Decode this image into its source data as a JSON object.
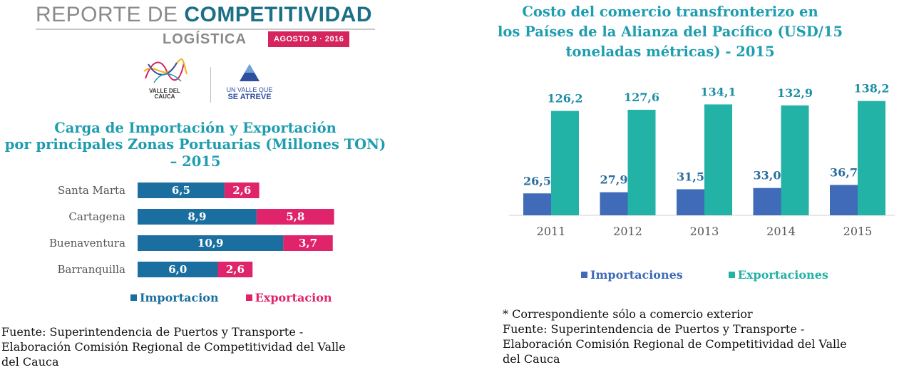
{
  "header": {
    "title_plain": "REPORTE DE ",
    "title_bold": "COMPETITIVIDAD",
    "subtitle": "LOGÍSTICA",
    "date_badge": "AGOSTO 9 · 2016",
    "logo_left_line1": "VALLE DEL",
    "logo_left_line2": "CAUCA",
    "logo_right_line1": "UN VALLE QUE",
    "logo_right_line2": "SE ATREVE"
  },
  "colors": {
    "importacion": "#1a6fa0",
    "exportacion": "#e0246c",
    "importaciones": "#3f6bb8",
    "exportaciones": "#22b2a6",
    "title": "#1e9db0"
  },
  "left": {
    "title_line1": "Carga de Importación y Exportación",
    "title_line2": "por principales Zonas Portuarias (Millones TON)",
    "title_line3": "– 2015",
    "source_line1": "Fuente: Superintendencia de Puertos y Transporte -",
    "source_line2": "Elaboración Comisión Regional de Competitividad del Valle",
    "source_line3": "del Cauca"
  },
  "right": {
    "title_line1": "Costo del comercio transfronterizo en",
    "title_line2": "los Países de la Alianza del Pacífico (USD/15",
    "title_line3": "toneladas métricas) - 2015",
    "note": "* Correspondiente sólo a comercio exterior",
    "source_line1": "Fuente: Superintendencia de Puertos y Transporte -",
    "source_line2": "Elaboración Comisión Regional de Competitividad del Valle",
    "source_line3": "del Cauca"
  },
  "chart_data": [
    {
      "type": "bar",
      "orientation": "horizontal",
      "stacked": true,
      "title": "Carga de Importación y Exportación por principales Zonas Portuarias (Millones TON) – 2015",
      "categories": [
        "Santa Marta",
        "Cartagena",
        "Buenaventura",
        "Barranquilla"
      ],
      "series": [
        {
          "name": "Importacion",
          "values": [
            6.5,
            8.9,
            10.9,
            6.0
          ],
          "labels": [
            "6,5",
            "8,9",
            "10,9",
            "6,0"
          ]
        },
        {
          "name": "Exportacion",
          "values": [
            2.6,
            5.8,
            3.7,
            2.6
          ],
          "labels": [
            "2,6",
            "5,8",
            "3,7",
            "2,6"
          ]
        }
      ],
      "legend": "bottom"
    },
    {
      "type": "bar",
      "orientation": "vertical",
      "title": "Costo del comercio transfronterizo en los Países de la Alianza del Pacífico (USD/15 toneladas métricas) - 2015",
      "categories": [
        "2011",
        "2012",
        "2013",
        "2014",
        "2015"
      ],
      "series": [
        {
          "name": "Importaciones",
          "values": [
            26.5,
            27.9,
            31.5,
            33.0,
            36.7
          ],
          "labels": [
            "26,5",
            "27,9",
            "31,5",
            "33,0",
            "36,7"
          ]
        },
        {
          "name": "Exportaciones",
          "values": [
            126.2,
            127.6,
            134.1,
            132.9,
            138.2
          ],
          "labels": [
            "126,2",
            "127,6",
            "134,1",
            "132,9",
            "138,2"
          ]
        }
      ],
      "legend": "bottom"
    }
  ]
}
